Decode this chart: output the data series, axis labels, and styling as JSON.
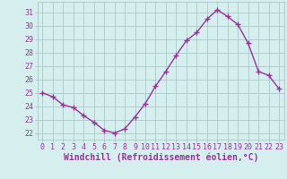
{
  "x": [
    0,
    1,
    2,
    3,
    4,
    5,
    6,
    7,
    8,
    9,
    10,
    11,
    12,
    13,
    14,
    15,
    16,
    17,
    18,
    19,
    20,
    21,
    22,
    23
  ],
  "y": [
    25.0,
    24.7,
    24.1,
    23.9,
    23.3,
    22.8,
    22.2,
    22.0,
    22.3,
    23.2,
    24.2,
    25.5,
    26.6,
    27.8,
    28.9,
    29.5,
    30.5,
    31.2,
    30.7,
    30.1,
    28.7,
    26.6,
    26.3,
    25.3
  ],
  "line_color": "#993399",
  "marker": "+",
  "marker_size": 4,
  "marker_lw": 1.0,
  "line_width": 1.0,
  "bg_color": "#d5eeee",
  "grid_color": "#b0cccc",
  "xlabel": "Windchill (Refroidissement éolien,°C)",
  "xlabel_color": "#993399",
  "ylim": [
    21.5,
    31.8
  ],
  "xlim": [
    -0.5,
    23.5
  ],
  "yticks": [
    22,
    23,
    24,
    25,
    26,
    27,
    28,
    29,
    30,
    31
  ],
  "xticks": [
    0,
    1,
    2,
    3,
    4,
    5,
    6,
    7,
    8,
    9,
    10,
    11,
    12,
    13,
    14,
    15,
    16,
    17,
    18,
    19,
    20,
    21,
    22,
    23
  ],
  "tick_label_color": "#993399",
  "tick_label_size": 6,
  "xlabel_size": 7,
  "fig_width": 3.2,
  "fig_height": 2.0,
  "dpi": 100
}
